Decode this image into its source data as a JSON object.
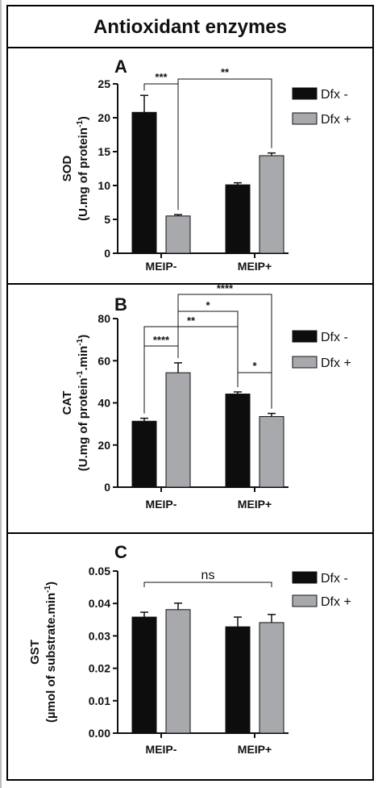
{
  "figure_title": "Antioxidant enzymes",
  "colors": {
    "dfx_minus": "#0d0d0d",
    "dfx_plus": "#a7a9ac"
  },
  "chart_data": [
    {
      "type": "bar",
      "panel": "A",
      "categories": [
        "MEIP-",
        "MEIP+"
      ],
      "series": [
        {
          "name": "Dfx -",
          "values": [
            20.8,
            10.1
          ],
          "errors": [
            2.5,
            0.3
          ]
        },
        {
          "name": "Dfx +",
          "values": [
            5.5,
            14.4
          ],
          "errors": [
            0.2,
            0.4
          ]
        }
      ],
      "ylabel_line1": "SOD",
      "ylabel_line2": "(U.mg of protein",
      "ylabel_sup": "-1",
      "ylabel_tail": ")",
      "ylim": [
        0,
        25
      ],
      "yticks": [
        "0",
        "5",
        "10",
        "15",
        "20",
        "25"
      ],
      "legend": "right",
      "significance": [
        {
          "label": "***",
          "from": [
            0,
            0
          ],
          "to": [
            0,
            1
          ]
        },
        {
          "label": "**",
          "from": [
            0,
            1
          ],
          "to": [
            1,
            1
          ]
        }
      ]
    },
    {
      "type": "bar",
      "panel": "B",
      "categories": [
        "MEIP-",
        "MEIP+"
      ],
      "series": [
        {
          "name": "Dfx -",
          "values": [
            31.3,
            44.2
          ],
          "errors": [
            1.4,
            1.0
          ]
        },
        {
          "name": "Dfx +",
          "values": [
            54.3,
            33.5
          ],
          "errors": [
            4.7,
            1.5
          ]
        }
      ],
      "ylabel_line1": "CAT",
      "ylabel_line2": "(U.mg of protein",
      "ylabel_sup": "-1",
      "ylabel_tail": ".min",
      "ylabel_sup2": "-1",
      "ylabel_tail2": ")",
      "ylim": [
        0,
        80
      ],
      "yticks": [
        "0",
        "20",
        "40",
        "60",
        "80"
      ],
      "legend": "right",
      "significance": [
        {
          "label": "****",
          "from": [
            0,
            0
          ],
          "to": [
            0,
            1
          ]
        },
        {
          "label": "**",
          "from": [
            0,
            0
          ],
          "to": [
            1,
            0
          ]
        },
        {
          "label": "*",
          "from": [
            0,
            1
          ],
          "to": [
            1,
            0
          ]
        },
        {
          "label": "****",
          "from": [
            0,
            1
          ],
          "to": [
            1,
            1
          ]
        },
        {
          "label": "*",
          "from": [
            1,
            0
          ],
          "to": [
            1,
            1
          ]
        }
      ]
    },
    {
      "type": "bar",
      "panel": "C",
      "categories": [
        "MEIP-",
        "MEIP+"
      ],
      "series": [
        {
          "name": "Dfx -",
          "values": [
            0.0358,
            0.0328
          ],
          "errors": [
            0.0015,
            0.003
          ]
        },
        {
          "name": "Dfx +",
          "values": [
            0.0381,
            0.0341
          ],
          "errors": [
            0.002,
            0.0025
          ]
        }
      ],
      "ylabel_line1": "GST",
      "ylabel_line2": "(µmol of substrate.min",
      "ylabel_sup": "-1",
      "ylabel_tail": ")",
      "ylim": [
        0,
        0.05
      ],
      "yticks": [
        "0.00",
        "0.01",
        "0.02",
        "0.03",
        "0.04",
        "0.05"
      ],
      "legend": "right",
      "significance": [
        {
          "label": "ns",
          "from": [
            0,
            0
          ],
          "to": [
            1,
            1
          ]
        }
      ]
    }
  ]
}
